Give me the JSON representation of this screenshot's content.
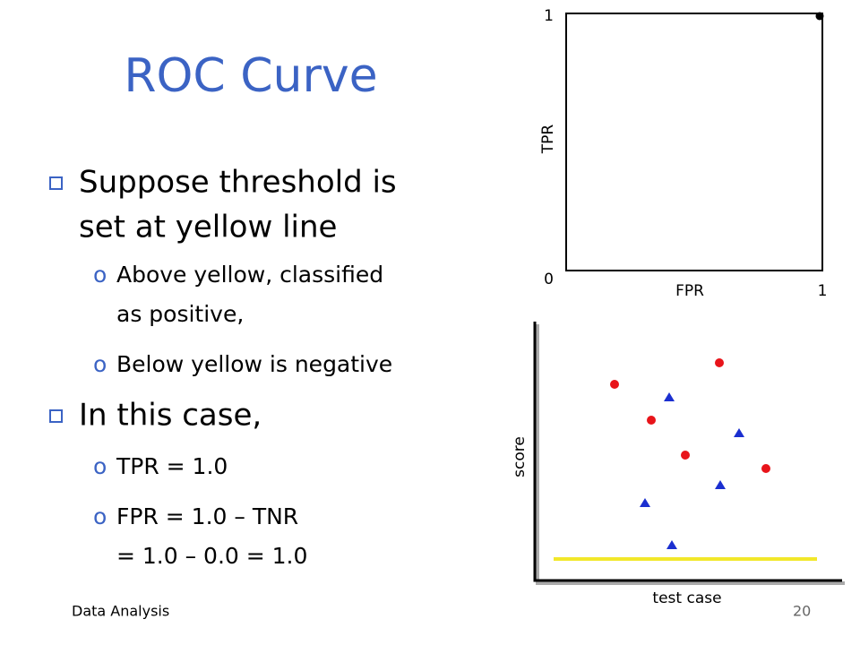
{
  "slide": {
    "title": "ROC Curve",
    "bullets": [
      {
        "lines": [
          "Suppose threshold is",
          "set at yellow line"
        ],
        "sub": [
          {
            "lines": [
              "Above yellow, classified",
              "as positive,"
            ]
          },
          {
            "lines": [
              "Below yellow is negative"
            ]
          }
        ]
      },
      {
        "lines": [
          "In this case,"
        ],
        "sub": [
          {
            "lines": [
              "TPR = 1.0"
            ]
          },
          {
            "lines": [
              "FPR = 1.0 – TNR",
              "= 1.0 – 0.0 = 1.0"
            ]
          }
        ]
      }
    ],
    "footer": "Data Analysis",
    "page_number": "20"
  },
  "roc": {
    "xlabel": "FPR",
    "ylabel": "TPR",
    "xlim": [
      0,
      1
    ],
    "ylim": [
      0,
      1
    ],
    "yticks": [
      0,
      1
    ],
    "xticks": [
      1
    ],
    "point": [
      1,
      1
    ]
  },
  "score_plot": {
    "ylabel": "score",
    "xlabel": "test case"
  }
}
